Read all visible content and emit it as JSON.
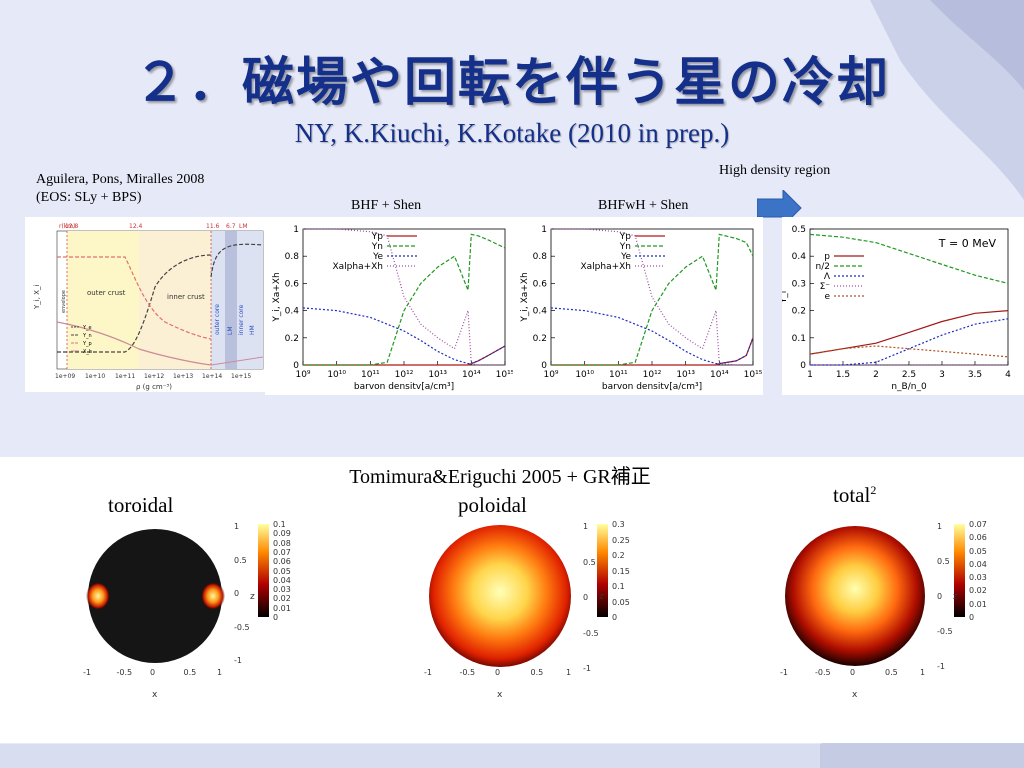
{
  "slide": {
    "title": "２．磁場や回転を伴う星の冷却",
    "subtitle": "NY, K.Kiuchi, K.Kotake (2010 in prep.)",
    "high_density_label": "High density region",
    "arrow_color": "#3b73c7",
    "title_color": "#14308a"
  },
  "panel_crust": {
    "caption_line1": "Aguilera, Pons, Miralles 2008",
    "caption_line2": "(EOS: SLy + BPS)",
    "top_axis_label": "r(km)",
    "top_ticks": [
      "12.8",
      "12.4",
      "11.6",
      "6.7",
      "LM"
    ],
    "regions": [
      "outer crust",
      "inner crust",
      "outer core",
      "LM",
      "inner core",
      "HM"
    ],
    "envelope_label": "envelope",
    "ylabel": "Y_i, X_i",
    "xlabel": "ρ (g cm⁻³)",
    "xticks": [
      "1e+09",
      "1e+10",
      "1e+11",
      "1e+12",
      "1e+13",
      "1e+14",
      "1e+15"
    ],
    "legend": [
      "Y_e",
      "Y_n",
      "Y_p",
      "X_h"
    ]
  },
  "panel_bhf": {
    "caption": "BHF + Shen",
    "ylabel": "Y_i, Xa+Xh",
    "xlabel": "barvon densitv[a/cm³]",
    "legend": [
      "Yp",
      "Yn",
      "Ye",
      "Xalpha+Xh"
    ],
    "yticks": [
      "0",
      "0.2",
      "0.4",
      "0.6",
      "0.8",
      "1"
    ],
    "xticks": [
      "10⁹",
      "10¹⁰",
      "10¹¹",
      "10¹²",
      "10¹³",
      "10¹⁴",
      "10¹⁵"
    ]
  },
  "panel_bhfwh": {
    "caption": "BHFwH + Shen",
    "ylabel": "Y_i, Xa+Xh",
    "xlabel": "barvon densitv[a/cm³]",
    "legend": [
      "Yp",
      "Yn",
      "Ye",
      "Xalpha+Xh"
    ],
    "yticks": [
      "0",
      "0.2",
      "0.4",
      "0.6",
      "0.8",
      "1"
    ],
    "xticks": [
      "10⁹",
      "10¹⁰",
      "10¹¹",
      "10¹²",
      "10¹³",
      "10¹⁴",
      "10¹⁵"
    ]
  },
  "panel_hd": {
    "annotation": "T = 0 MeV",
    "ylabel": "Y_i",
    "xlabel": "n_B/n_0",
    "legend": [
      "p",
      "n/2",
      "Λ",
      "Σ⁻",
      "e"
    ],
    "yticks": [
      "0",
      "0.1",
      "0.2",
      "0.3",
      "0.4",
      "0.5"
    ],
    "xticks": [
      "1",
      "1.5",
      "2",
      "2.5",
      "3",
      "3.5",
      "4"
    ]
  },
  "magnetic": {
    "heading": "Tomimura&Eriguchi 2005 + GR補正",
    "maps": [
      {
        "label": "toroidal",
        "sup": "",
        "cbar": [
          "0.1",
          "0.09",
          "0.08",
          "0.07",
          "0.06",
          "0.05",
          "0.04",
          "0.03",
          "0.02",
          "0.01",
          "0"
        ]
      },
      {
        "label": "poloidal",
        "sup": "",
        "cbar": [
          "0.3",
          "0.25",
          "0.2",
          "0.15",
          "0.1",
          "0.05",
          "0"
        ]
      },
      {
        "label": "total",
        "sup": "2",
        "cbar": [
          "0.07",
          "0.06",
          "0.05",
          "0.04",
          "0.03",
          "0.02",
          "0.01",
          "0"
        ]
      }
    ],
    "axis_x": "x",
    "axis_z": "z",
    "xticks": [
      "-1",
      "-0.5",
      "0",
      "0.5",
      "1"
    ],
    "zticks": [
      "1",
      "0.5",
      "0",
      "-0.5",
      "-1"
    ]
  },
  "chart_data": [
    {
      "type": "line",
      "title": "BHF + Shen",
      "xlabel": "barvon densitv[a/cm³]",
      "ylabel": "Y_i, Xa+Xh",
      "x_log10": [
        9,
        10,
        11,
        11.5,
        12,
        12.5,
        13,
        13.5,
        13.9,
        14,
        14.2,
        14.5,
        15
      ],
      "series": [
        {
          "name": "Yp",
          "values": [
            0,
            0,
            0,
            0,
            0,
            0,
            0,
            0,
            0,
            0.01,
            0.03,
            0.07,
            0.14
          ]
        },
        {
          "name": "Yn",
          "values": [
            0,
            0,
            0,
            0.02,
            0.4,
            0.6,
            0.72,
            0.8,
            0.55,
            0.96,
            0.95,
            0.92,
            0.86
          ]
        },
        {
          "name": "Ye",
          "values": [
            0.42,
            0.4,
            0.35,
            0.3,
            0.25,
            0.18,
            0.1,
            0.04,
            0.01,
            0.01,
            0.03,
            0.07,
            0.14
          ]
        },
        {
          "name": "Xalpha+Xh",
          "values": [
            1,
            1,
            0.98,
            0.95,
            0.5,
            0.3,
            0.2,
            0.12,
            0.4,
            0.01,
            0,
            0,
            0
          ]
        }
      ],
      "ylim": [
        0,
        1
      ]
    },
    {
      "type": "line",
      "title": "BHFwH + Shen",
      "xlabel": "barvon densitv[a/cm³]",
      "ylabel": "Y_i, Xa+Xh",
      "x_log10": [
        9,
        10,
        11,
        11.5,
        12,
        12.5,
        13,
        13.5,
        13.9,
        14,
        14.5,
        14.8,
        15
      ],
      "series": [
        {
          "name": "Yp",
          "values": [
            0,
            0,
            0,
            0,
            0,
            0,
            0,
            0,
            0,
            0.01,
            0.03,
            0.07,
            0.2
          ]
        },
        {
          "name": "Yn",
          "values": [
            0,
            0,
            0,
            0.02,
            0.4,
            0.6,
            0.72,
            0.8,
            0.55,
            0.96,
            0.93,
            0.9,
            0.8
          ]
        },
        {
          "name": "Ye",
          "values": [
            0.42,
            0.4,
            0.35,
            0.3,
            0.25,
            0.18,
            0.1,
            0.04,
            0.01,
            0.01,
            0.03,
            0.07,
            0.2
          ]
        },
        {
          "name": "Xalpha+Xh",
          "values": [
            1,
            1,
            0.98,
            0.95,
            0.5,
            0.3,
            0.2,
            0.12,
            0.4,
            0.01,
            0,
            0,
            0
          ]
        }
      ],
      "ylim": [
        0,
        1
      ]
    },
    {
      "type": "line",
      "title": "T = 0 MeV",
      "xlabel": "n_B/n_0",
      "ylabel": "Y_i",
      "x": [
        1,
        1.5,
        2,
        2.5,
        3,
        3.5,
        4
      ],
      "series": [
        {
          "name": "p",
          "values": [
            0.04,
            0.06,
            0.08,
            0.12,
            0.16,
            0.19,
            0.2
          ]
        },
        {
          "name": "n/2",
          "values": [
            0.48,
            0.47,
            0.45,
            0.41,
            0.37,
            0.33,
            0.3
          ]
        },
        {
          "name": "Λ",
          "values": [
            0,
            0,
            0.01,
            0.06,
            0.11,
            0.15,
            0.17
          ]
        },
        {
          "name": "Σ⁻",
          "values": [
            0,
            0,
            0,
            0,
            0,
            0,
            0
          ]
        },
        {
          "name": "e",
          "values": [
            0.04,
            0.06,
            0.07,
            0.06,
            0.05,
            0.04,
            0.03
          ]
        }
      ],
      "ylim": [
        0,
        0.5
      ],
      "xlim": [
        1,
        4
      ]
    }
  ]
}
